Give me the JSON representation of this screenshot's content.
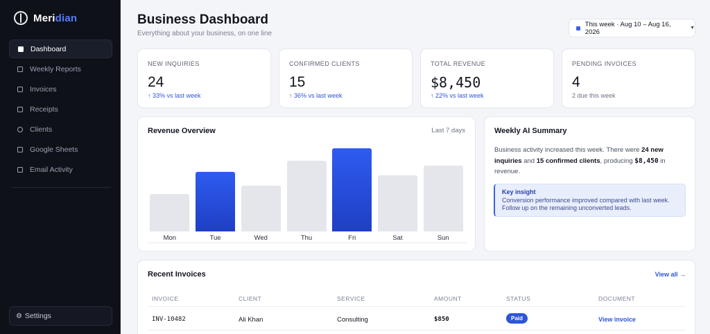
{
  "app": {
    "brand_prefix": "Meri",
    "brand_suffix": "dian"
  },
  "sidebar": {
    "items": [
      {
        "label": "Dashboard",
        "active": true
      },
      {
        "label": "Weekly Reports"
      },
      {
        "label": "Invoices"
      },
      {
        "label": "Receipts"
      },
      {
        "label": "Clients"
      },
      {
        "label": "Google Sheets"
      },
      {
        "label": "Email Activity"
      }
    ],
    "settings_label": "Settings"
  },
  "header": {
    "title": "Business Dashboard",
    "subtitle": "Everything about your business, on one line",
    "date_range": "This week · Aug 10 – Aug 16, 2026"
  },
  "stats": [
    {
      "label": "NEW INQUIRIES",
      "value": "24",
      "delta": "↑ 33% vs last week"
    },
    {
      "label": "CONFIRMED CLIENTS",
      "value": "15",
      "delta": "↑ 36% vs last week"
    },
    {
      "label": "TOTAL REVENUE",
      "value": "$8,450",
      "delta": "↑ 22% vs last week"
    },
    {
      "label": "PENDING INVOICES",
      "value": "4",
      "delta": "2 due this week"
    }
  ],
  "chart_data": {
    "type": "bar",
    "title": "Revenue Overview",
    "range_label": "Last 7 days",
    "categories": [
      "Mon",
      "Tue",
      "Wed",
      "Thu",
      "Fri",
      "Sat",
      "Sun"
    ],
    "values": [
      52,
      83,
      63,
      98,
      115,
      78,
      91
    ],
    "highlighted": [
      "Tue",
      "Fri"
    ],
    "colors": {
      "highlight": "#2e5bf0",
      "default": "#e4e6ec"
    }
  },
  "ai_summary": {
    "title": "Weekly AI Summary",
    "body_1": "Business activity increased this week. There were ",
    "body_b1": "24 new inquiries",
    "body_2": " and ",
    "body_b2": "15 confirmed clients",
    "body_3": ", producing ",
    "body_b3": "$8,450",
    "body_4": " in revenue.",
    "insight_title": "Key insight",
    "insight_text": "Conversion performance improved compared with last week. Follow up on the remaining unconverted leads."
  },
  "invoices": {
    "title": "Recent Invoices",
    "view_all": "View all →",
    "columns": [
      "INVOICE",
      "CLIENT",
      "SERVICE",
      "AMOUNT",
      "STATUS",
      "DOCUMENT"
    ],
    "rows": [
      {
        "invoice": "INV-10482",
        "client": "Ali Khan",
        "service": "Consulting",
        "amount": "$850",
        "status": "Paid",
        "document": "View invoice"
      }
    ]
  }
}
